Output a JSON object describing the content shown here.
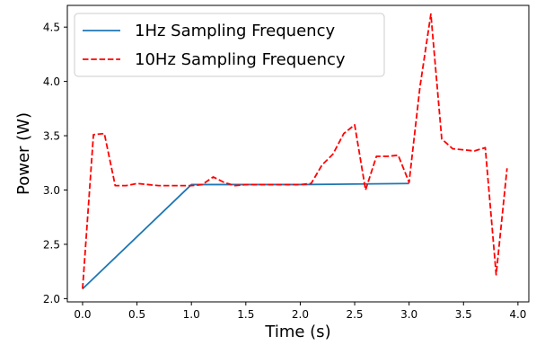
{
  "chart_data": {
    "type": "line",
    "title": "",
    "xlabel": "Time (s)",
    "ylabel": "Power (W)",
    "xlim": [
      -0.14,
      4.1
    ],
    "ylim": [
      1.97,
      4.7
    ],
    "x_ticks": [
      0.0,
      0.5,
      1.0,
      1.5,
      2.0,
      2.5,
      3.0,
      3.5,
      4.0
    ],
    "x_tick_labels": [
      "0.0",
      "0.5",
      "1.0",
      "1.5",
      "2.0",
      "2.5",
      "3.0",
      "3.5",
      "4.0"
    ],
    "y_ticks": [
      2.0,
      2.5,
      3.0,
      3.5,
      4.0,
      4.5
    ],
    "y_tick_labels": [
      "2.0",
      "2.5",
      "3.0",
      "3.5",
      "4.0",
      "4.5"
    ],
    "grid": false,
    "legend_position": "top-left",
    "series": [
      {
        "name": "1Hz Sampling Frequency",
        "color": "#1f77b4",
        "style": "solid",
        "x": [
          0,
          1,
          2,
          3
        ],
        "y": [
          2.09,
          3.05,
          3.05,
          3.06
        ]
      },
      {
        "name": "10Hz Sampling Frequency",
        "color": "#ff0000",
        "style": "dashed",
        "x": [
          0.0,
          0.1,
          0.2,
          0.3,
          0.4,
          0.5,
          0.6,
          0.7,
          0.8,
          0.9,
          1.0,
          1.1,
          1.2,
          1.3,
          1.4,
          1.5,
          1.6,
          1.7,
          1.8,
          1.9,
          2.0,
          2.1,
          2.2,
          2.3,
          2.4,
          2.5,
          2.6,
          2.7,
          2.8,
          2.9,
          3.0,
          3.1,
          3.2,
          3.3,
          3.4,
          3.5,
          3.6,
          3.7,
          3.8,
          3.9
        ],
        "y": [
          2.09,
          3.51,
          3.52,
          3.04,
          3.04,
          3.06,
          3.05,
          3.04,
          3.04,
          3.04,
          3.04,
          3.05,
          3.12,
          3.07,
          3.04,
          3.05,
          3.05,
          3.05,
          3.05,
          3.05,
          3.05,
          3.06,
          3.23,
          3.33,
          3.52,
          3.6,
          3.0,
          3.31,
          3.31,
          3.32,
          3.07,
          3.95,
          4.62,
          3.47,
          3.38,
          3.37,
          3.36,
          3.39,
          2.22,
          3.2
        ]
      }
    ]
  }
}
